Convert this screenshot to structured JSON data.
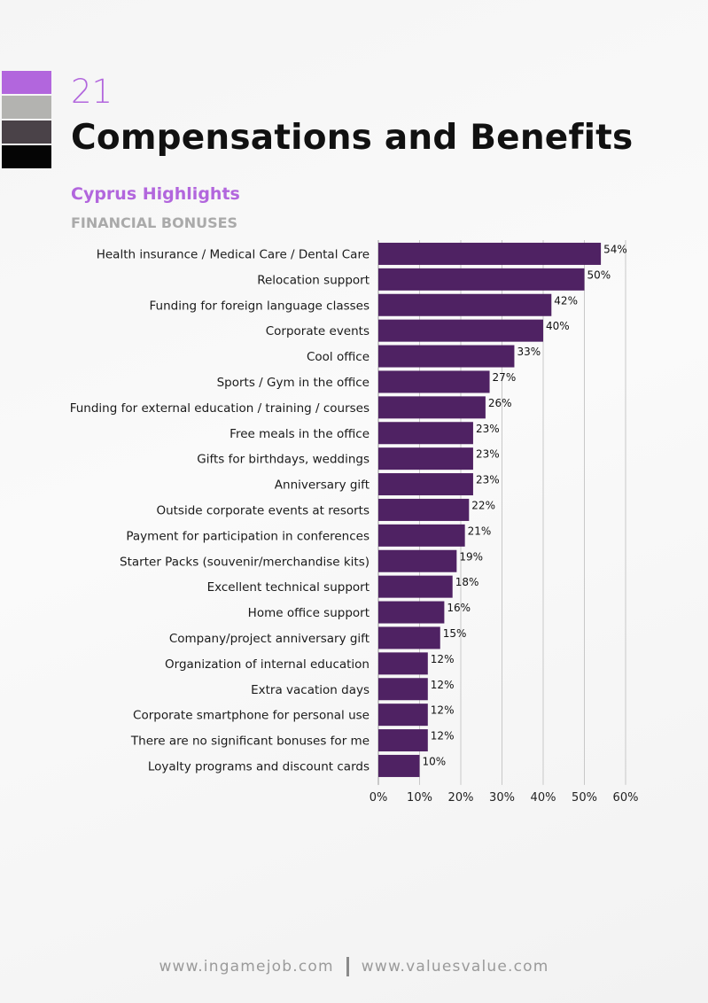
{
  "header": {
    "page_number": "21",
    "title": "Compensations and Benefits",
    "subtitle": "Cyprus Highlights",
    "section": "FINANCIAL BONUSES"
  },
  "colors": {
    "accent": "#b266dd",
    "swatches": [
      "#b266dd",
      "#b3b3b0",
      "#4a4248",
      "#050505"
    ],
    "bar": "#4f2263",
    "section": "#aaaaaa",
    "grid": "#c8c8c8"
  },
  "chart_data": {
    "type": "bar",
    "orientation": "horizontal",
    "categories": [
      "Health insurance / Medical Care / Dental Care",
      "Relocation support",
      "Funding for foreign language classes",
      "Corporate events",
      "Cool office",
      "Sports / Gym in the office",
      "Funding for external education / training / courses",
      "Free meals in the office",
      "Gifts for birthdays, weddings",
      "Anniversary gift",
      "Outside corporate events at resorts",
      "Payment for participation in conferences",
      "Starter Packs (souvenir/merchandise kits)",
      "Excellent technical support",
      "Home office support",
      "Company/project anniversary gift",
      "Organization of internal education",
      "Extra vacation days",
      "Corporate smartphone for personal use",
      "There are no significant bonuses for me",
      "Loyalty programs and discount cards"
    ],
    "values": [
      54,
      50,
      42,
      40,
      33,
      27,
      26,
      23,
      23,
      23,
      22,
      21,
      19,
      18,
      16,
      15,
      12,
      12,
      12,
      12,
      10
    ],
    "data_labels": [
      "54%",
      "50%",
      "42%",
      "40%",
      "33%",
      "27%",
      "26%",
      "23%",
      "23%",
      "23%",
      "22%",
      "21%",
      "19%",
      "18%",
      "16%",
      "15%",
      "12%",
      "12%",
      "12%",
      "12%",
      "10%"
    ],
    "xlim": [
      0,
      60
    ],
    "xticks": [
      "0%",
      "10%",
      "20%",
      "30%",
      "40%",
      "50%",
      "60%"
    ],
    "grid": true,
    "title": "",
    "xlabel": "",
    "ylabel": ""
  },
  "footer": {
    "left": "www.ingamejob.com",
    "right": "www.valuesvalue.com"
  }
}
